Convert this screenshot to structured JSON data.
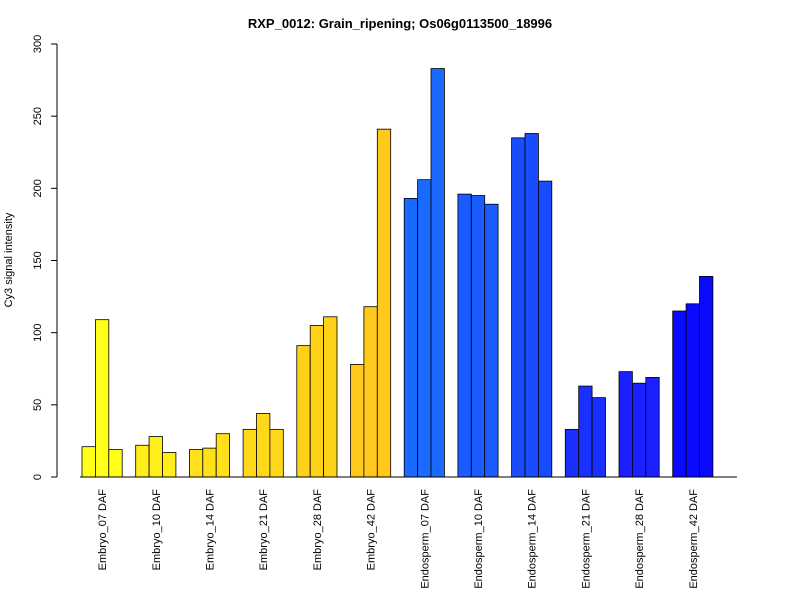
{
  "chart_data": {
    "type": "bar",
    "title": "RXP_0012: Grain_ripening; Os06g0113500_18996",
    "xlabel": "",
    "ylabel": "Cy3 signal intensity",
    "ylim": [
      0,
      300
    ],
    "yticks": [
      0,
      50,
      100,
      150,
      200,
      250,
      300
    ],
    "grid": false,
    "categories": [
      "Embryo_07 DAF",
      "Embryo_10 DAF",
      "Embryo_14 DAF",
      "Embryo_21 DAF",
      "Embryo_28 DAF",
      "Embryo_42 DAF",
      "Endosperm_07 DAF",
      "Endosperm_10 DAF",
      "Endosperm_14 DAF",
      "Endosperm_21 DAF",
      "Endosperm_28 DAF",
      "Endosperm_42 DAF"
    ],
    "replicates_per_category": 3,
    "values": [
      [
        21,
        109,
        19
      ],
      [
        22,
        28,
        17
      ],
      [
        19,
        20,
        30
      ],
      [
        33,
        44,
        33
      ],
      [
        91,
        105,
        111
      ],
      [
        78,
        118,
        241
      ],
      [
        193,
        206,
        283
      ],
      [
        196,
        195,
        189
      ],
      [
        235,
        238,
        205
      ],
      [
        33,
        63,
        55
      ],
      [
        73,
        65,
        69
      ],
      [
        115,
        120,
        139
      ]
    ],
    "colors": [
      "#ffff1a",
      "#ffee1a",
      "#ffe01a",
      "#ffd81a",
      "#ffd21a",
      "#ffc81a",
      "#1a6aff",
      "#1a5cff",
      "#1a4cff",
      "#1a30ff",
      "#1a20ff",
      "#0a0aff"
    ]
  }
}
